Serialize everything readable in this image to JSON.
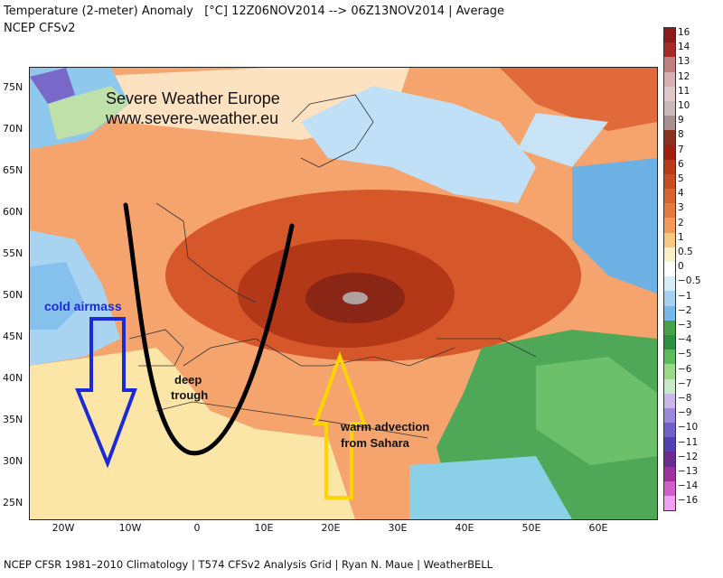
{
  "header": {
    "title": "Temperature (2-meter) Anomaly   [°C] 12Z06NOV2014 --> 06Z13NOV2014 | Average",
    "model": "NCEP CFSv2"
  },
  "watermark": {
    "line1": "Severe Weather Europe",
    "line2": "www.severe-weather.eu"
  },
  "annotations": {
    "cold": "cold airmass",
    "trough_line1": "deep",
    "trough_line2": "trough",
    "warm_line1": "warm advection",
    "warm_line2": "from Sahara"
  },
  "lat_labels": [
    "75N",
    "70N",
    "65N",
    "60N",
    "55N",
    "50N",
    "45N",
    "40N",
    "35N",
    "30N",
    "25N"
  ],
  "lon_labels": [
    "20W",
    "10W",
    "0",
    "10E",
    "20E",
    "30E",
    "40E",
    "50E",
    "60E"
  ],
  "footer": "NCEP CFSR 1981–2010 Climatology | T574 CFSv2 Analysis Grid | Ryan N. Maue | WeatherBELL",
  "colorbar": {
    "labels": [
      "16",
      "14",
      "13",
      "12",
      "11",
      "10",
      "9",
      "8",
      "7",
      "6",
      "5",
      "4",
      "3",
      "2",
      "1",
      "0.5",
      "0",
      "−0.5",
      "−1",
      "−2",
      "−3",
      "−4",
      "−5",
      "−6",
      "−7",
      "−8",
      "−9",
      "−10",
      "−11",
      "−12",
      "−13",
      "−14",
      "−16"
    ],
    "colors": [
      "#8b1a1a",
      "#a52a2a",
      "#c08080",
      "#d8b0b0",
      "#e0c8c8",
      "#c8b8b8",
      "#a89090",
      "#8a3020",
      "#a02010",
      "#b83a18",
      "#c85020",
      "#d8642e",
      "#e67a3e",
      "#f39a58",
      "#f8c880",
      "#faf0c8",
      "#ffffff",
      "#d8ecf8",
      "#a8d0f0",
      "#78b8e8",
      "#48a048",
      "#2e9040",
      "#5cbc5c",
      "#9ad88a",
      "#c8e8c8",
      "#c8b8e8",
      "#9a88d8",
      "#7060c8",
      "#5040b0",
      "#6a2a90",
      "#a030a0",
      "#d060c8",
      "#f0a0f0"
    ]
  },
  "colors": {
    "cold_arrow": "#1a2ad8",
    "trough_line": "#000000",
    "warm_arrow": "#ffd400"
  }
}
